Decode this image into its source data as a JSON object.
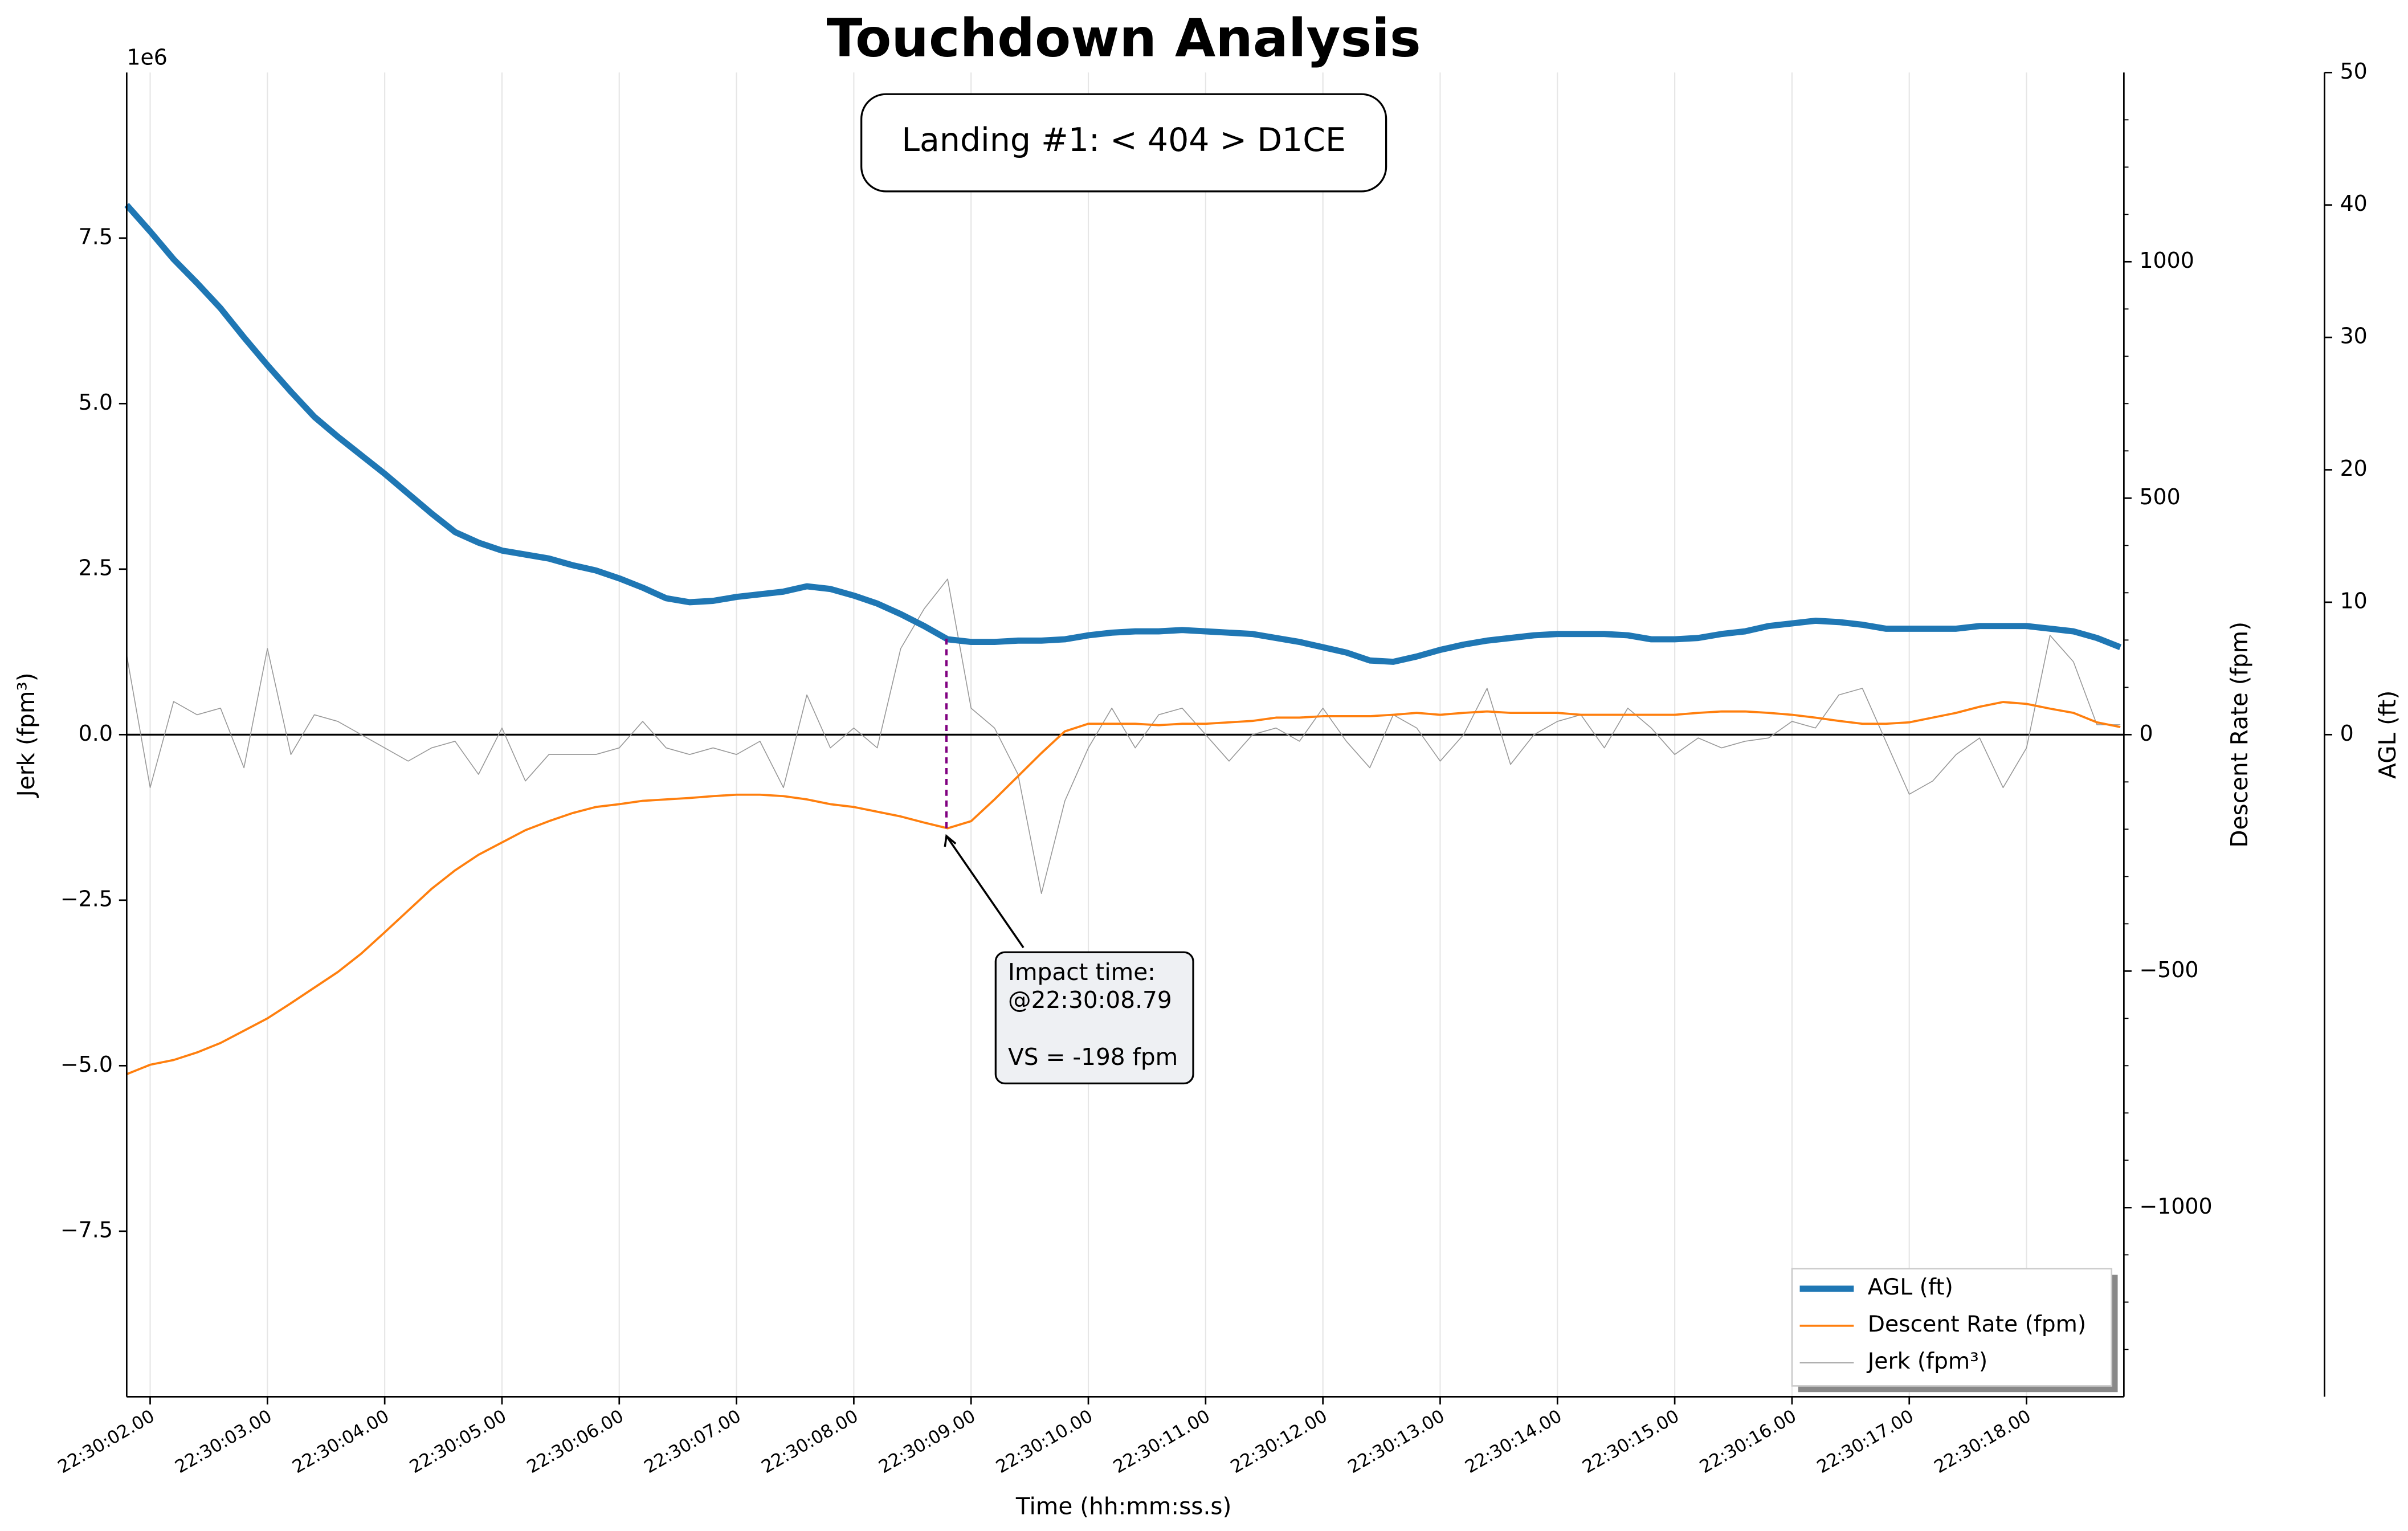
{
  "chart_data": {
    "type": "line",
    "title": "Touchdown Analysis",
    "xlabel": "Time (hh:mm:ss.s)",
    "ylabel": "Jerk (fpm³)",
    "y2label": "Descent Rate (fpm)",
    "y3label": "AGL (ft)",
    "y_offset_label": "1e6",
    "x": [
      "22:30:01.80",
      "22:30:02.00",
      "22:30:02.20",
      "22:30:02.40",
      "22:30:02.60",
      "22:30:02.80",
      "22:30:03.00",
      "22:30:03.20",
      "22:30:03.40",
      "22:30:03.60",
      "22:30:03.80",
      "22:30:04.00",
      "22:30:04.20",
      "22:30:04.40",
      "22:30:04.60",
      "22:30:04.80",
      "22:30:05.00",
      "22:30:05.20",
      "22:30:05.40",
      "22:30:05.60",
      "22:30:05.80",
      "22:30:06.00",
      "22:30:06.20",
      "22:30:06.40",
      "22:30:06.60",
      "22:30:06.80",
      "22:30:07.00",
      "22:30:07.20",
      "22:30:07.40",
      "22:30:07.60",
      "22:30:07.80",
      "22:30:08.00",
      "22:30:08.20",
      "22:30:08.40",
      "22:30:08.60",
      "22:30:08.80",
      "22:30:09.00",
      "22:30:09.20",
      "22:30:09.40",
      "22:30:09.60",
      "22:30:09.80",
      "22:30:10.00",
      "22:30:10.20",
      "22:30:10.40",
      "22:30:10.60",
      "22:30:10.80",
      "22:30:11.00",
      "22:30:11.20",
      "22:30:11.40",
      "22:30:11.60",
      "22:30:11.80",
      "22:30:12.00",
      "22:30:12.20",
      "22:30:12.40",
      "22:30:12.60",
      "22:30:12.80",
      "22:30:13.00",
      "22:30:13.20",
      "22:30:13.40",
      "22:30:13.60",
      "22:30:13.80",
      "22:30:14.00",
      "22:30:14.20",
      "22:30:14.40",
      "22:30:14.60",
      "22:30:14.80",
      "22:30:15.00",
      "22:30:15.20",
      "22:30:15.40",
      "22:30:15.60",
      "22:30:15.80",
      "22:30:16.00",
      "22:30:16.20",
      "22:30:16.40",
      "22:30:16.60",
      "22:30:16.80",
      "22:30:17.00",
      "22:30:17.20",
      "22:30:17.40",
      "22:30:17.60",
      "22:30:17.80",
      "22:30:18.00",
      "22:30:18.20",
      "22:30:18.40",
      "22:30:18.60",
      "22:30:18.80"
    ],
    "series": [
      {
        "name": "AGL (ft)",
        "color": "#1f77b4",
        "axis": "y3",
        "values": [
          40.0,
          38.0,
          35.9,
          34.1,
          32.2,
          30.0,
          27.9,
          25.9,
          24.0,
          22.5,
          21.1,
          19.7,
          18.2,
          16.7,
          15.3,
          14.5,
          13.9,
          13.6,
          13.3,
          12.8,
          12.4,
          11.8,
          11.1,
          10.3,
          10.0,
          10.1,
          10.4,
          10.6,
          10.8,
          11.2,
          11.0,
          10.5,
          9.9,
          9.1,
          8.2,
          7.2,
          7.0,
          7.0,
          7.1,
          7.1,
          7.2,
          7.5,
          7.7,
          7.8,
          7.8,
          7.9,
          7.8,
          7.7,
          7.6,
          7.3,
          7.0,
          6.6,
          6.2,
          5.6,
          5.5,
          5.9,
          6.4,
          6.8,
          7.1,
          7.3,
          7.5,
          7.6,
          7.6,
          7.6,
          7.5,
          7.2,
          7.2,
          7.3,
          7.6,
          7.8,
          8.2,
          8.4,
          8.6,
          8.5,
          8.3,
          8.0,
          8.0,
          8.0,
          8.0,
          8.2,
          8.2,
          8.2,
          8.0,
          7.8,
          7.3,
          6.6
        ]
      },
      {
        "name": "Descent Rate (fpm)",
        "color": "#ff7f0e",
        "axis": "y2",
        "values": [
          -718,
          -698,
          -688,
          -672,
          -652,
          -626,
          -600,
          -568,
          -535,
          -502,
          -463,
          -418,
          -372,
          -326,
          -287,
          -254,
          -228,
          -202,
          -183,
          -166,
          -153,
          -147,
          -140,
          -137,
          -134,
          -130,
          -127,
          -127,
          -130,
          -137,
          -147,
          -153,
          -163,
          -173,
          -186,
          -198,
          -183,
          -137,
          -88,
          -39,
          7,
          23,
          23,
          23,
          20,
          23,
          23,
          26,
          29,
          36,
          36,
          39,
          39,
          39,
          42,
          46,
          42,
          46,
          49,
          46,
          46,
          46,
          42,
          42,
          42,
          42,
          42,
          46,
          49,
          49,
          46,
          42,
          36,
          29,
          23,
          23,
          26,
          36,
          46,
          59,
          69,
          65,
          55,
          46,
          26,
          16
        ]
      },
      {
        "name": "Jerk (fpm³)",
        "color": "#999999",
        "axis": "y",
        "values": [
          1.2,
          -0.8,
          0.5,
          0.3,
          0.4,
          -0.5,
          1.3,
          -0.3,
          0.3,
          0.2,
          0.0,
          -0.2,
          -0.4,
          -0.2,
          -0.1,
          -0.6,
          0.1,
          -0.7,
          -0.3,
          -0.3,
          -0.3,
          -0.2,
          0.2,
          -0.2,
          -0.3,
          -0.2,
          -0.3,
          -0.1,
          -0.8,
          0.6,
          -0.2,
          0.1,
          -0.2,
          1.3,
          1.9,
          2.35,
          0.4,
          0.1,
          -0.6,
          -2.4,
          -1.0,
          -0.2,
          0.4,
          -0.2,
          0.3,
          0.4,
          0.0,
          -0.4,
          0.0,
          0.1,
          -0.1,
          0.4,
          -0.1,
          -0.5,
          0.3,
          0.1,
          -0.4,
          0.0,
          0.7,
          -0.45,
          0.0,
          0.2,
          0.3,
          -0.2,
          0.4,
          0.1,
          -0.3,
          -0.05,
          -0.2,
          -0.1,
          -0.05,
          0.2,
          0.1,
          0.6,
          0.7,
          -0.1,
          -0.9,
          -0.7,
          -0.3,
          -0.05,
          -0.8,
          -0.2,
          1.5,
          1.1,
          0.15,
          0.15
        ]
      }
    ],
    "xlim": [
      "22:30:01.80",
      "22:30:18.83"
    ],
    "xticks": [
      "22:30:02.00",
      "22:30:03.00",
      "22:30:04.00",
      "22:30:05.00",
      "22:30:06.00",
      "22:30:07.00",
      "22:30:08.00",
      "22:30:09.00",
      "22:30:10.00",
      "22:30:11.00",
      "22:30:12.00",
      "22:30:13.00",
      "22:30:14.00",
      "22:30:15.00",
      "22:30:16.00",
      "22:30:17.00",
      "22:30:18.00"
    ],
    "ylim": [
      -10,
      10
    ],
    "yticks": [
      {
        "value": -7.5,
        "label": "−7.5"
      },
      {
        "value": -5,
        "label": "−5.0"
      },
      {
        "value": -2.5,
        "label": "−2.5"
      },
      {
        "value": 0,
        "label": "0.0"
      },
      2.5,
      {
        "value": 5,
        "label": "5.0"
      },
      7.5
    ],
    "y2lim": [
      -1400,
      1400
    ],
    "y2ticks": [
      {
        "value": -1000,
        "label": "−1000"
      },
      {
        "value": -500,
        "label": "−500"
      },
      0,
      500,
      1000
    ],
    "y2minorticks": [
      -1300,
      -1200,
      -1100,
      -900,
      -800,
      -700,
      -600,
      -400,
      -300,
      -200,
      -100,
      100,
      200,
      300,
      400,
      600,
      700,
      800,
      900,
      1100,
      1200,
      1300
    ],
    "y3lim": [
      -50,
      50
    ],
    "y3ticks": [
      0,
      10,
      20,
      30,
      40,
      50
    ],
    "grid": true,
    "legend": "lower right",
    "annotations": [
      {
        "text": [
          "Landing #1: < 404 > D1CE"
        ]
      },
      {
        "text": [
          "Impact time:",
          "@22:30:08.79",
          "VS = -198 fpm"
        ],
        "x": "22:30:08.79",
        "y": -198
      }
    ]
  }
}
